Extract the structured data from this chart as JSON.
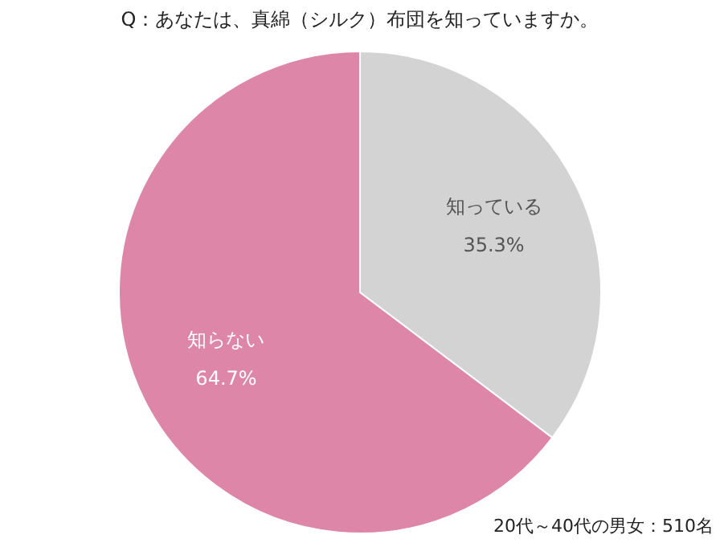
{
  "chart_data": {
    "type": "pie",
    "title": "Q：あなたは、真綿（シルク）布団を知っていますか。",
    "categories": [
      "知っている",
      "知らない"
    ],
    "values": [
      35.3,
      64.7
    ],
    "colors": [
      "#d3d3d3",
      "#dd86a8"
    ],
    "value_labels": [
      "35.3%",
      "64.7%"
    ],
    "annotations": [
      "20代～40代の男女：510名"
    ]
  }
}
